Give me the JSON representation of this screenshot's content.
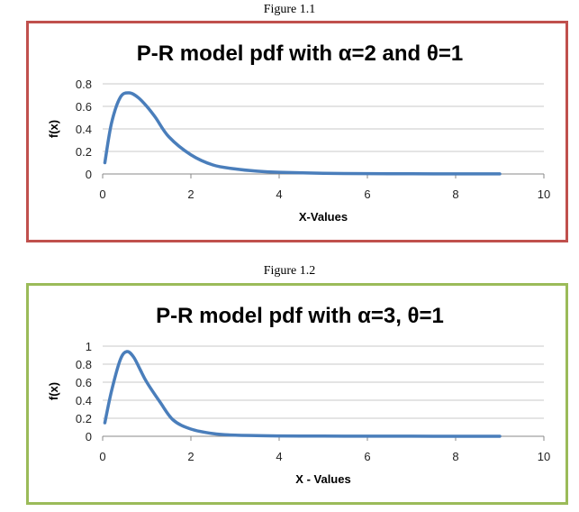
{
  "figures": [
    {
      "caption": "Figure 1.1"
    },
    {
      "caption": "Figure 1.2"
    }
  ],
  "colors": {
    "series": "#4a7ebb",
    "border1": "#c0504d",
    "border2": "#9bbb59",
    "grid": "#c8c8c8"
  },
  "chart_data": [
    {
      "type": "line",
      "title": "P-R model pdf with α=2 and θ=1",
      "xlabel": "X-Values",
      "ylabel": "f(x)",
      "xlim": [
        0,
        10
      ],
      "ylim": [
        0,
        0.8
      ],
      "xticks": [
        "0",
        "2",
        "4",
        "6",
        "8",
        "10"
      ],
      "yticks": [
        "0",
        "0.2",
        "0.4",
        "0.6",
        "0.8"
      ],
      "grid": true,
      "series": [
        {
          "x": [
            0.05,
            0.2,
            0.4,
            0.6,
            0.8,
            1.0,
            1.2,
            1.5,
            2.0,
            2.5,
            3.0,
            3.5,
            4.0,
            5.0,
            6.0,
            7.0,
            8.0,
            9.0
          ],
          "values": [
            0.1,
            0.45,
            0.68,
            0.72,
            0.68,
            0.6,
            0.5,
            0.33,
            0.17,
            0.08,
            0.045,
            0.025,
            0.015,
            0.006,
            0.003,
            0.002,
            0.001,
            0.001
          ]
        }
      ]
    },
    {
      "type": "line",
      "title": "P-R model pdf with α=3, θ=1",
      "xlabel": "X - Values",
      "ylabel": "f(x)",
      "xlim": [
        0,
        10
      ],
      "ylim": [
        0,
        1
      ],
      "xticks": [
        "0",
        "2",
        "4",
        "6",
        "8",
        "10"
      ],
      "yticks": [
        "0",
        "0.2",
        "0.4",
        "0.6",
        "0.8",
        "1"
      ],
      "grid": true,
      "series": [
        {
          "x": [
            0.05,
            0.2,
            0.4,
            0.55,
            0.7,
            0.85,
            1.0,
            1.3,
            1.6,
            2.0,
            2.5,
            3.0,
            4.0,
            5.0,
            6.0,
            7.0,
            8.0,
            9.0
          ],
          "values": [
            0.15,
            0.5,
            0.85,
            0.94,
            0.88,
            0.74,
            0.6,
            0.38,
            0.18,
            0.08,
            0.03,
            0.012,
            0.004,
            0.002,
            0.001,
            0.001,
            0.0,
            0.0
          ]
        }
      ]
    }
  ]
}
